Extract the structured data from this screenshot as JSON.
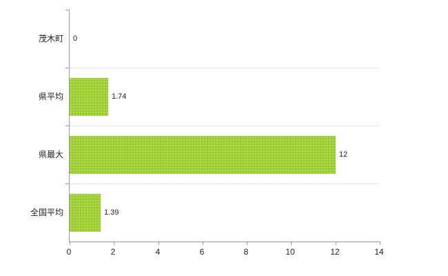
{
  "chart_data": {
    "type": "bar",
    "orientation": "horizontal",
    "title": "",
    "xlabel": "",
    "ylabel": "",
    "categories": [
      "茂木町",
      "県平均",
      "県最大",
      "全国平均"
    ],
    "values": [
      0,
      1.74,
      12,
      1.39
    ],
    "value_labels": [
      "0",
      "1.74",
      "12",
      "1.39"
    ],
    "xlim": [
      0,
      14
    ],
    "x_ticks": [
      0,
      2,
      4,
      6,
      8,
      10,
      12,
      14
    ],
    "grid": "horizontal-band-lines",
    "legend": "none",
    "bar_color": "#9ccd2e",
    "axis_color": "#999999",
    "gridline_color": "#e5e5e5",
    "text_color": "#222222",
    "background_color": "#ffffff"
  }
}
